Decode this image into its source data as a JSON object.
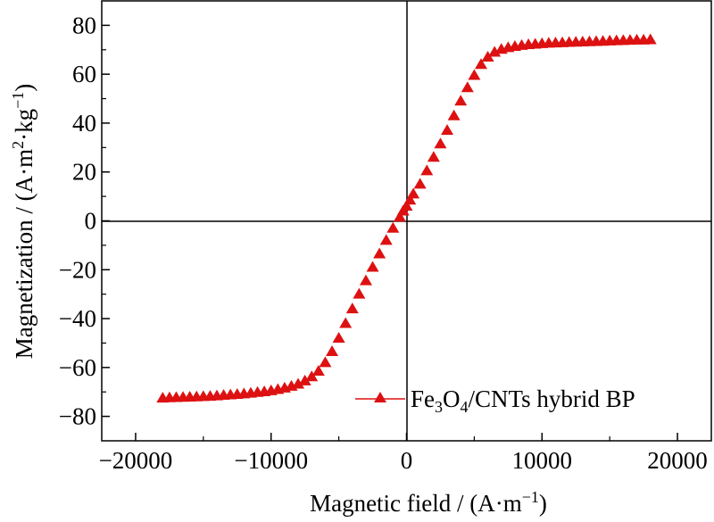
{
  "chart_data": {
    "type": "scatter",
    "title": "",
    "xlabel": "Magnetic field / (A·m⁻¹)",
    "ylabel": "Magnetization / (A·m²·kg⁻¹)",
    "xlim": [
      -22500,
      22500
    ],
    "ylim": [
      -90,
      90
    ],
    "x_ticks": [
      -20000,
      -10000,
      0,
      10000,
      20000
    ],
    "x_tick_labels": [
      "−20000",
      "−10000",
      "0",
      "10000",
      "20000"
    ],
    "y_ticks": [
      -80,
      -60,
      -40,
      -20,
      0,
      20,
      40,
      60,
      80
    ],
    "y_tick_labels": [
      "−80",
      "−60",
      "−40",
      "−20",
      "0",
      "20",
      "40",
      "60",
      "80"
    ],
    "grid": false,
    "legend_position": "bottom-right",
    "zero_lines": true,
    "series": [
      {
        "name": "Fe3O4/CNTs hybrid BP",
        "marker": "triangle",
        "color": "#dd1111",
        "x": [
          -18000,
          -17500,
          -17000,
          -16500,
          -16000,
          -15500,
          -15000,
          -14500,
          -14000,
          -13500,
          -13000,
          -12500,
          -12000,
          -11500,
          -11000,
          -10500,
          -10000,
          -9500,
          -9000,
          -8500,
          -8000,
          -7500,
          -7000,
          -6500,
          -6000,
          -5500,
          -5000,
          -4500,
          -4000,
          -3500,
          -3000,
          -2500,
          -2000,
          -1500,
          -1000,
          -500,
          -250,
          0,
          250,
          500,
          1000,
          1500,
          2000,
          2500,
          3000,
          3500,
          4000,
          4500,
          5000,
          5500,
          6000,
          6500,
          7000,
          7500,
          8000,
          8500,
          9000,
          9500,
          10000,
          10500,
          11000,
          11500,
          12000,
          12500,
          13000,
          13500,
          14000,
          14500,
          15000,
          15500,
          16000,
          16500,
          17000,
          17500,
          18000
        ],
        "y": [
          -72.5,
          -72.4,
          -72.3,
          -72.2,
          -72.1,
          -72.0,
          -71.9,
          -71.8,
          -71.6,
          -71.4,
          -71.2,
          -71.0,
          -70.8,
          -70.5,
          -70.2,
          -69.9,
          -69.5,
          -69.0,
          -68.4,
          -67.7,
          -66.8,
          -65.5,
          -63.8,
          -61.5,
          -58.0,
          -53.5,
          -48.0,
          -42.0,
          -36.0,
          -30.0,
          -24.5,
          -19.0,
          -13.5,
          -8.0,
          -3.0,
          1.5,
          4.0,
          6.0,
          8.5,
          11.0,
          15.0,
          20.5,
          26.0,
          31.5,
          37.0,
          43.0,
          49.0,
          54.5,
          59.5,
          64.0,
          67.0,
          69.0,
          70.2,
          70.9,
          71.4,
          71.8,
          72.1,
          72.3,
          72.5,
          72.7,
          72.8,
          72.9,
          73.0,
          73.1,
          73.2,
          73.3,
          73.4,
          73.5,
          73.6,
          73.7,
          73.8,
          73.9,
          74.0,
          74.0,
          74.1
        ]
      }
    ]
  },
  "legend": {
    "label_main": "Fe",
    "sub1": "3",
    "label_mid": "O",
    "sub2": "4",
    "label_tail": "/CNTs hybrid BP"
  },
  "axes": {
    "xlabel_main": "Magnetic field / (A·m",
    "xlabel_sup": "−1",
    "xlabel_end": ")",
    "ylabel_main": "Magnetization / (A·m",
    "ylabel_sup1": "2",
    "ylabel_mid": "·kg",
    "ylabel_sup2": "−1",
    "ylabel_end": ")"
  }
}
